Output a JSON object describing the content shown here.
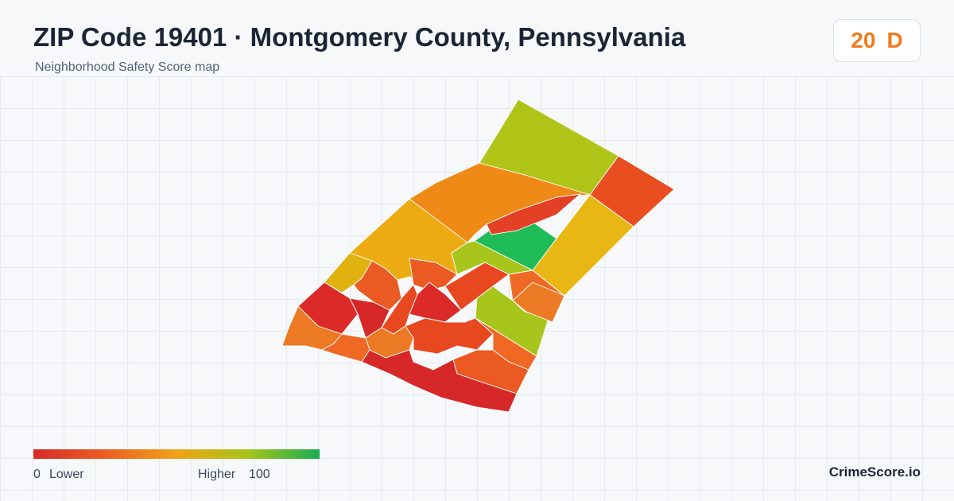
{
  "header": {
    "title": "ZIP Code 19401 · Montgomery County, Pennsylvania",
    "subtitle": "Neighborhood Safety Score map"
  },
  "score": {
    "value": "20",
    "grade": "D",
    "color": "#f07b1e"
  },
  "legend": {
    "min_label": "0",
    "low_label": "Lower",
    "high_label": "Higher",
    "max_label": "100",
    "colors": [
      "#d62a2a",
      "#ec5f22",
      "#f0a21a",
      "#a7c51b",
      "#19ad52"
    ]
  },
  "map": {
    "tract_fill_colors": [
      "#b0c417",
      "#e94e21",
      "#ef8a16",
      "#e8b713",
      "#1fbc57",
      "#e34026",
      "#ecab12",
      "#a8c51b",
      "#ea5a22",
      "#dc2a28",
      "#e0b10f",
      "#ef6824",
      "#e7481f",
      "#d62828",
      "#ec7923"
    ]
  },
  "brand": "CrimeScore.io"
}
